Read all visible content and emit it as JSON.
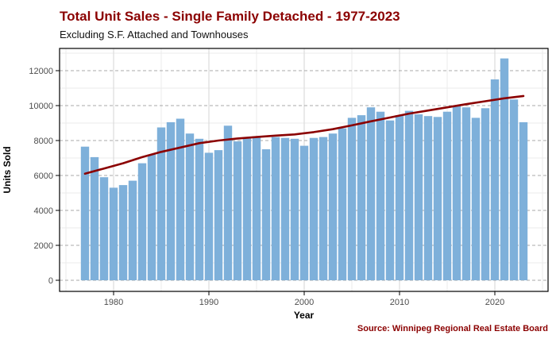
{
  "title": "Total Unit Sales - Single Family Detached - 1977-2023",
  "subtitle": "Excluding S.F. Attached and Townhouses",
  "source": "Source: Winnipeg Regional Real Estate Board",
  "colors": {
    "title_red": "#8b0000",
    "source_red": "#8b0000",
    "bar": "#7eb0da",
    "trend": "#8b0000",
    "axis_text": "#4d4d4d",
    "axis_line": "#000000",
    "grid_major_h": "#a8a8a8",
    "grid_major_v": "#d6d6d6",
    "grid_minor": "#ebebeb"
  },
  "chart_data": {
    "type": "bar",
    "title": "Total Unit Sales - Single Family Detached - 1977-2023",
    "subtitle": "Excluding S.F. Attached and Townhouses",
    "xlabel": "Year",
    "ylabel": "Units Sold",
    "legend": "none",
    "grid": "horizontal majors dashed gray, vertical majors light gray, minors faint; full black panel border",
    "x": [
      1977,
      1978,
      1979,
      1980,
      1981,
      1982,
      1983,
      1984,
      1985,
      1986,
      1987,
      1988,
      1989,
      1990,
      1991,
      1992,
      1993,
      1994,
      1995,
      1996,
      1997,
      1998,
      1999,
      2000,
      2001,
      2002,
      2003,
      2004,
      2005,
      2006,
      2007,
      2008,
      2009,
      2010,
      2011,
      2012,
      2013,
      2014,
      2015,
      2016,
      2017,
      2018,
      2019,
      2020,
      2021,
      2022,
      2023
    ],
    "values": [
      7650,
      7050,
      5900,
      5300,
      5450,
      5700,
      6700,
      7200,
      8750,
      9050,
      9250,
      8400,
      8100,
      7300,
      7450,
      8850,
      7950,
      8150,
      8250,
      7500,
      8200,
      8150,
      8100,
      7700,
      8150,
      8200,
      8400,
      8700,
      9300,
      9450,
      9900,
      9650,
      9150,
      9450,
      9700,
      9500,
      9400,
      9350,
      9650,
      10000,
      9900,
      9300,
      9850,
      11500,
      12700,
      10350,
      9050
    ],
    "trend": {
      "name": "smoothed trend line",
      "points": [
        [
          1977,
          6100
        ],
        [
          1979,
          6400
        ],
        [
          1981,
          6700
        ],
        [
          1983,
          7050
        ],
        [
          1985,
          7350
        ],
        [
          1987,
          7600
        ],
        [
          1989,
          7850
        ],
        [
          1991,
          8000
        ],
        [
          1993,
          8120
        ],
        [
          1995,
          8200
        ],
        [
          1997,
          8280
        ],
        [
          1999,
          8350
        ],
        [
          2001,
          8480
        ],
        [
          2003,
          8650
        ],
        [
          2005,
          8870
        ],
        [
          2007,
          9100
        ],
        [
          2009,
          9320
        ],
        [
          2011,
          9540
        ],
        [
          2013,
          9720
        ],
        [
          2015,
          9900
        ],
        [
          2017,
          10080
        ],
        [
          2019,
          10250
        ],
        [
          2021,
          10420
        ],
        [
          2023,
          10550
        ]
      ]
    },
    "axes": {
      "x_ticks": [
        1980,
        1990,
        2000,
        2010,
        2020
      ],
      "x_minor": [
        1975,
        1985,
        1995,
        2005,
        2015,
        2025
      ],
      "y_ticks": [
        0,
        2000,
        4000,
        6000,
        8000,
        10000,
        12000
      ],
      "y_minor": [
        1000,
        3000,
        5000,
        7000,
        9000,
        11000,
        13000
      ],
      "xlim": [
        1975.3,
        2026.3
      ],
      "ylim": [
        -640,
        13300
      ]
    }
  }
}
